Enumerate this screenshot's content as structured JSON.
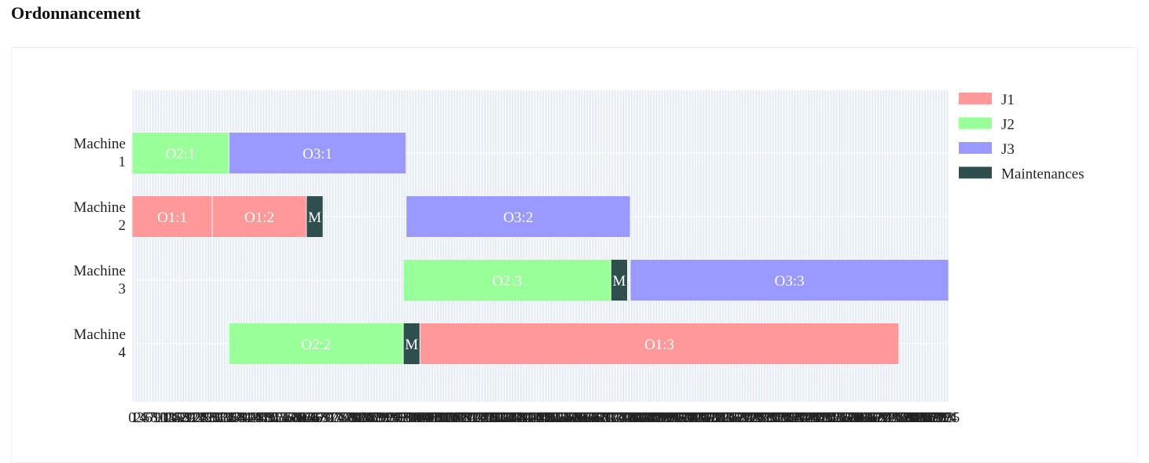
{
  "page": {
    "title": "Ordonnancement"
  },
  "chart_data": {
    "type": "bar",
    "orientation": "horizontal-gantt",
    "machines": [
      "Machine 1",
      "Machine 2",
      "Machine 3",
      "Machine 4"
    ],
    "xlim": [
      0,
      295
    ],
    "xtick_step": 1,
    "grid": true,
    "legend_position": "top-right",
    "legend": [
      {
        "name": "J1",
        "color": "#ff9999"
      },
      {
        "name": "J2",
        "color": "#99ff99"
      },
      {
        "name": "J3",
        "color": "#9999ff"
      },
      {
        "name": "Maintenances",
        "color": "#2f4f4f"
      }
    ],
    "tasks": [
      {
        "machine": 1,
        "label": "O2:1",
        "job": "J2",
        "start": 0,
        "end": 35
      },
      {
        "machine": 1,
        "label": "O3:1",
        "job": "J3",
        "start": 35,
        "end": 99
      },
      {
        "machine": 2,
        "label": "O1:1",
        "job": "J1",
        "start": 0,
        "end": 29
      },
      {
        "machine": 2,
        "label": "O1:2",
        "job": "J1",
        "start": 29,
        "end": 63
      },
      {
        "machine": 2,
        "label": "M",
        "job": "Maintenances",
        "start": 63,
        "end": 69
      },
      {
        "machine": 2,
        "label": "O3:2",
        "job": "J3",
        "start": 99,
        "end": 180
      },
      {
        "machine": 3,
        "label": "O2:3",
        "job": "J2",
        "start": 98,
        "end": 173
      },
      {
        "machine": 3,
        "label": "M",
        "job": "Maintenances",
        "start": 173,
        "end": 179
      },
      {
        "machine": 3,
        "label": "O3:3",
        "job": "J3",
        "start": 180,
        "end": 295
      },
      {
        "machine": 4,
        "label": "O2:2",
        "job": "J2",
        "start": 35,
        "end": 98
      },
      {
        "machine": 4,
        "label": "M",
        "job": "Maintenances",
        "start": 98,
        "end": 104
      },
      {
        "machine": 4,
        "label": "O1:3",
        "job": "J1",
        "start": 104,
        "end": 277
      }
    ],
    "xtick_labels_visible": [
      "0",
      "1",
      "2",
      "3",
      "4",
      "5",
      "6",
      "7",
      "8",
      "9",
      "10",
      "11",
      "12",
      "13",
      "14",
      "15",
      "16",
      "17",
      "18",
      "19",
      "20",
      "21",
      "22",
      "23",
      "24",
      "25",
      "26",
      "27",
      "28",
      "29",
      "30",
      "31",
      "32",
      "33",
      "34",
      "35",
      "36",
      "37",
      "38",
      "39",
      "40",
      "41",
      "42",
      "43",
      "44",
      "45",
      "46",
      "47",
      "48",
      "49",
      "50",
      "51",
      "52",
      "53",
      "54",
      "55",
      "56",
      "57",
      "58",
      "59",
      "60",
      "61",
      "62",
      "63",
      "64",
      "65",
      "66",
      "67",
      "68",
      "69",
      "70",
      "71",
      "72",
      "73",
      "74",
      "75",
      "76",
      "77",
      "78",
      "79",
      "80",
      "81",
      "82",
      "83",
      "84",
      "85",
      "86",
      "87",
      "88",
      "89",
      "90",
      "91",
      "92",
      "93",
      "94",
      "95",
      "96",
      "97",
      "98",
      "99",
      "100",
      "101",
      "102",
      "103",
      "104",
      "105",
      "106",
      "107",
      "108",
      "109",
      "110",
      "111",
      "112",
      "113",
      "114",
      "115",
      "116",
      "117",
      "118",
      "119",
      "120",
      "121",
      "122",
      "123",
      "124",
      "125",
      "126",
      "127",
      "128",
      "129",
      "130",
      "131",
      "132",
      "133",
      "134",
      "135",
      "136",
      "137",
      "138",
      "139",
      "140",
      "141",
      "142",
      "143",
      "144",
      "145",
      "146",
      "147",
      "148",
      "149",
      "150",
      "151",
      "152",
      "153",
      "154",
      "155",
      "156",
      "157",
      "158",
      "159",
      "160",
      "161",
      "162",
      "163",
      "164",
      "165",
      "166",
      "167",
      "168",
      "169",
      "170",
      "171",
      "172",
      "173",
      "174",
      "175",
      "176",
      "177",
      "178",
      "179",
      "180",
      "181",
      "182",
      "183",
      "184",
      "185",
      "186",
      "187",
      "188",
      "189",
      "190",
      "191",
      "192",
      "193",
      "194",
      "195",
      "196",
      "197",
      "198",
      "199",
      "200",
      "201",
      "202",
      "203",
      "204",
      "205",
      "206",
      "207",
      "208",
      "209",
      "210",
      "211",
      "212",
      "213",
      "214",
      "215",
      "216",
      "217",
      "218",
      "219",
      "220",
      "221",
      "222",
      "223",
      "224",
      "225",
      "226",
      "227",
      "228",
      "229",
      "230",
      "231",
      "232",
      "233",
      "234",
      "235",
      "236",
      "237",
      "238",
      "239",
      "240",
      "241",
      "242",
      "243",
      "244",
      "245",
      "246",
      "247",
      "248",
      "249",
      "250",
      "251",
      "252",
      "253",
      "254",
      "255",
      "256",
      "257",
      "258",
      "259",
      "260",
      "261",
      "262",
      "263",
      "264",
      "265",
      "266",
      "267",
      "268",
      "269",
      "270",
      "271",
      "272",
      "273",
      "274",
      "275",
      "276",
      "277",
      "278",
      "279",
      "280",
      "281",
      "282",
      "283",
      "284",
      "285",
      "286",
      "287",
      "288",
      "289",
      "290",
      "291",
      "292",
      "293",
      "294",
      "295"
    ]
  }
}
